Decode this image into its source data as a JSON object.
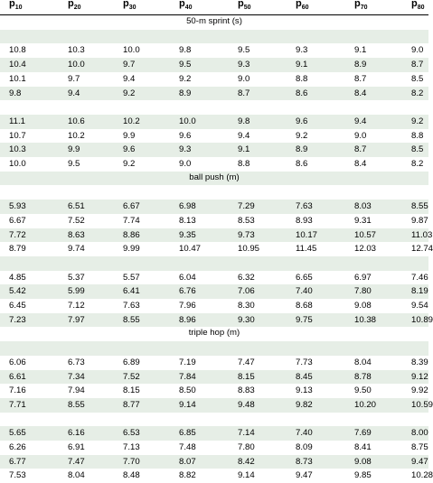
{
  "header": [
    {
      "base": "p",
      "sub": "10"
    },
    {
      "base": "p",
      "sub": "20"
    },
    {
      "base": "p",
      "sub": "30"
    },
    {
      "base": "p",
      "sub": "40"
    },
    {
      "base": "p",
      "sub": "50"
    },
    {
      "base": "p",
      "sub": "60"
    },
    {
      "base": "p",
      "sub": "70"
    },
    {
      "base": "p",
      "sub": "80"
    }
  ],
  "sections": [
    {
      "title": "50-m sprint (s)",
      "groups": [
        [
          [
            "10.8",
            "10.3",
            "10.0",
            "9.8",
            "9.5",
            "9.3",
            "9.1",
            "9.0"
          ],
          [
            "10.4",
            "10.0",
            "9.7",
            "9.5",
            "9.3",
            "9.1",
            "8.9",
            "8.7"
          ],
          [
            "10.1",
            "9.7",
            "9.4",
            "9.2",
            "9.0",
            "8.8",
            "8.7",
            "8.5"
          ],
          [
            "9.8",
            "9.4",
            "9.2",
            "8.9",
            "8.7",
            "8.6",
            "8.4",
            "8.2"
          ]
        ],
        [
          [
            "11.1",
            "10.6",
            "10.2",
            "10.0",
            "9.8",
            "9.6",
            "9.4",
            "9.2"
          ],
          [
            "10.7",
            "10.2",
            "9.9",
            "9.6",
            "9.4",
            "9.2",
            "9.0",
            "8.8"
          ],
          [
            "10.3",
            "9.9",
            "9.6",
            "9.3",
            "9.1",
            "8.9",
            "8.7",
            "8.5"
          ],
          [
            "10.0",
            "9.5",
            "9.2",
            "9.0",
            "8.8",
            "8.6",
            "8.4",
            "8.2"
          ]
        ]
      ]
    },
    {
      "title": "ball push (m)",
      "groups": [
        [
          [
            "5.93",
            "6.51",
            "6.67",
            "6.98",
            "7.29",
            "7.63",
            "8.03",
            "8.55"
          ],
          [
            "6.67",
            "7.52",
            "7.74",
            "8.13",
            "8.53",
            "8.93",
            "9.31",
            "9.87"
          ],
          [
            "7.72",
            "8.63",
            "8.86",
            "9.35",
            "9.73",
            "10.17",
            "10.57",
            "11.03"
          ],
          [
            "8.79",
            "9.74",
            "9.99",
            "10.47",
            "10.95",
            "11.45",
            "12.03",
            "12.74"
          ]
        ],
        [
          [
            "4.85",
            "5.37",
            "5.57",
            "6.04",
            "6.32",
            "6.65",
            "6.97",
            "7.46"
          ],
          [
            "5.42",
            "5.99",
            "6.41",
            "6.76",
            "7.06",
            "7.40",
            "7.80",
            "8.19"
          ],
          [
            "6.45",
            "7.12",
            "7.63",
            "7.96",
            "8.30",
            "8.68",
            "9.08",
            "9.54"
          ],
          [
            "7.23",
            "7.97",
            "8.55",
            "8.96",
            "9.30",
            "9.75",
            "10.38",
            "10.89"
          ]
        ]
      ]
    },
    {
      "title": "triple hop (m)",
      "groups": [
        [
          [
            "6.06",
            "6.73",
            "6.89",
            "7.19",
            "7.47",
            "7.73",
            "8.04",
            "8.39"
          ],
          [
            "6.61",
            "7.34",
            "7.52",
            "7.84",
            "8.15",
            "8.45",
            "8.78",
            "9.12"
          ],
          [
            "7.16",
            "7.94",
            "8.15",
            "8.50",
            "8.83",
            "9.13",
            "9.50",
            "9.92"
          ],
          [
            "7.71",
            "8.55",
            "8.77",
            "9.14",
            "9.48",
            "9.82",
            "10.20",
            "10.59"
          ]
        ],
        [
          [
            "5.65",
            "6.16",
            "6.53",
            "6.85",
            "7.14",
            "7.40",
            "7.69",
            "8.00"
          ],
          [
            "6.26",
            "6.91",
            "7.13",
            "7.48",
            "7.80",
            "8.09",
            "8.41",
            "8.75"
          ],
          [
            "6.77",
            "7.47",
            "7.70",
            "8.07",
            "8.42",
            "8.73",
            "9.08",
            "9.47"
          ],
          [
            "7.53",
            "8.04",
            "8.48",
            "8.82",
            "9.14",
            "9.47",
            "9.85",
            "10.28"
          ]
        ]
      ]
    }
  ]
}
